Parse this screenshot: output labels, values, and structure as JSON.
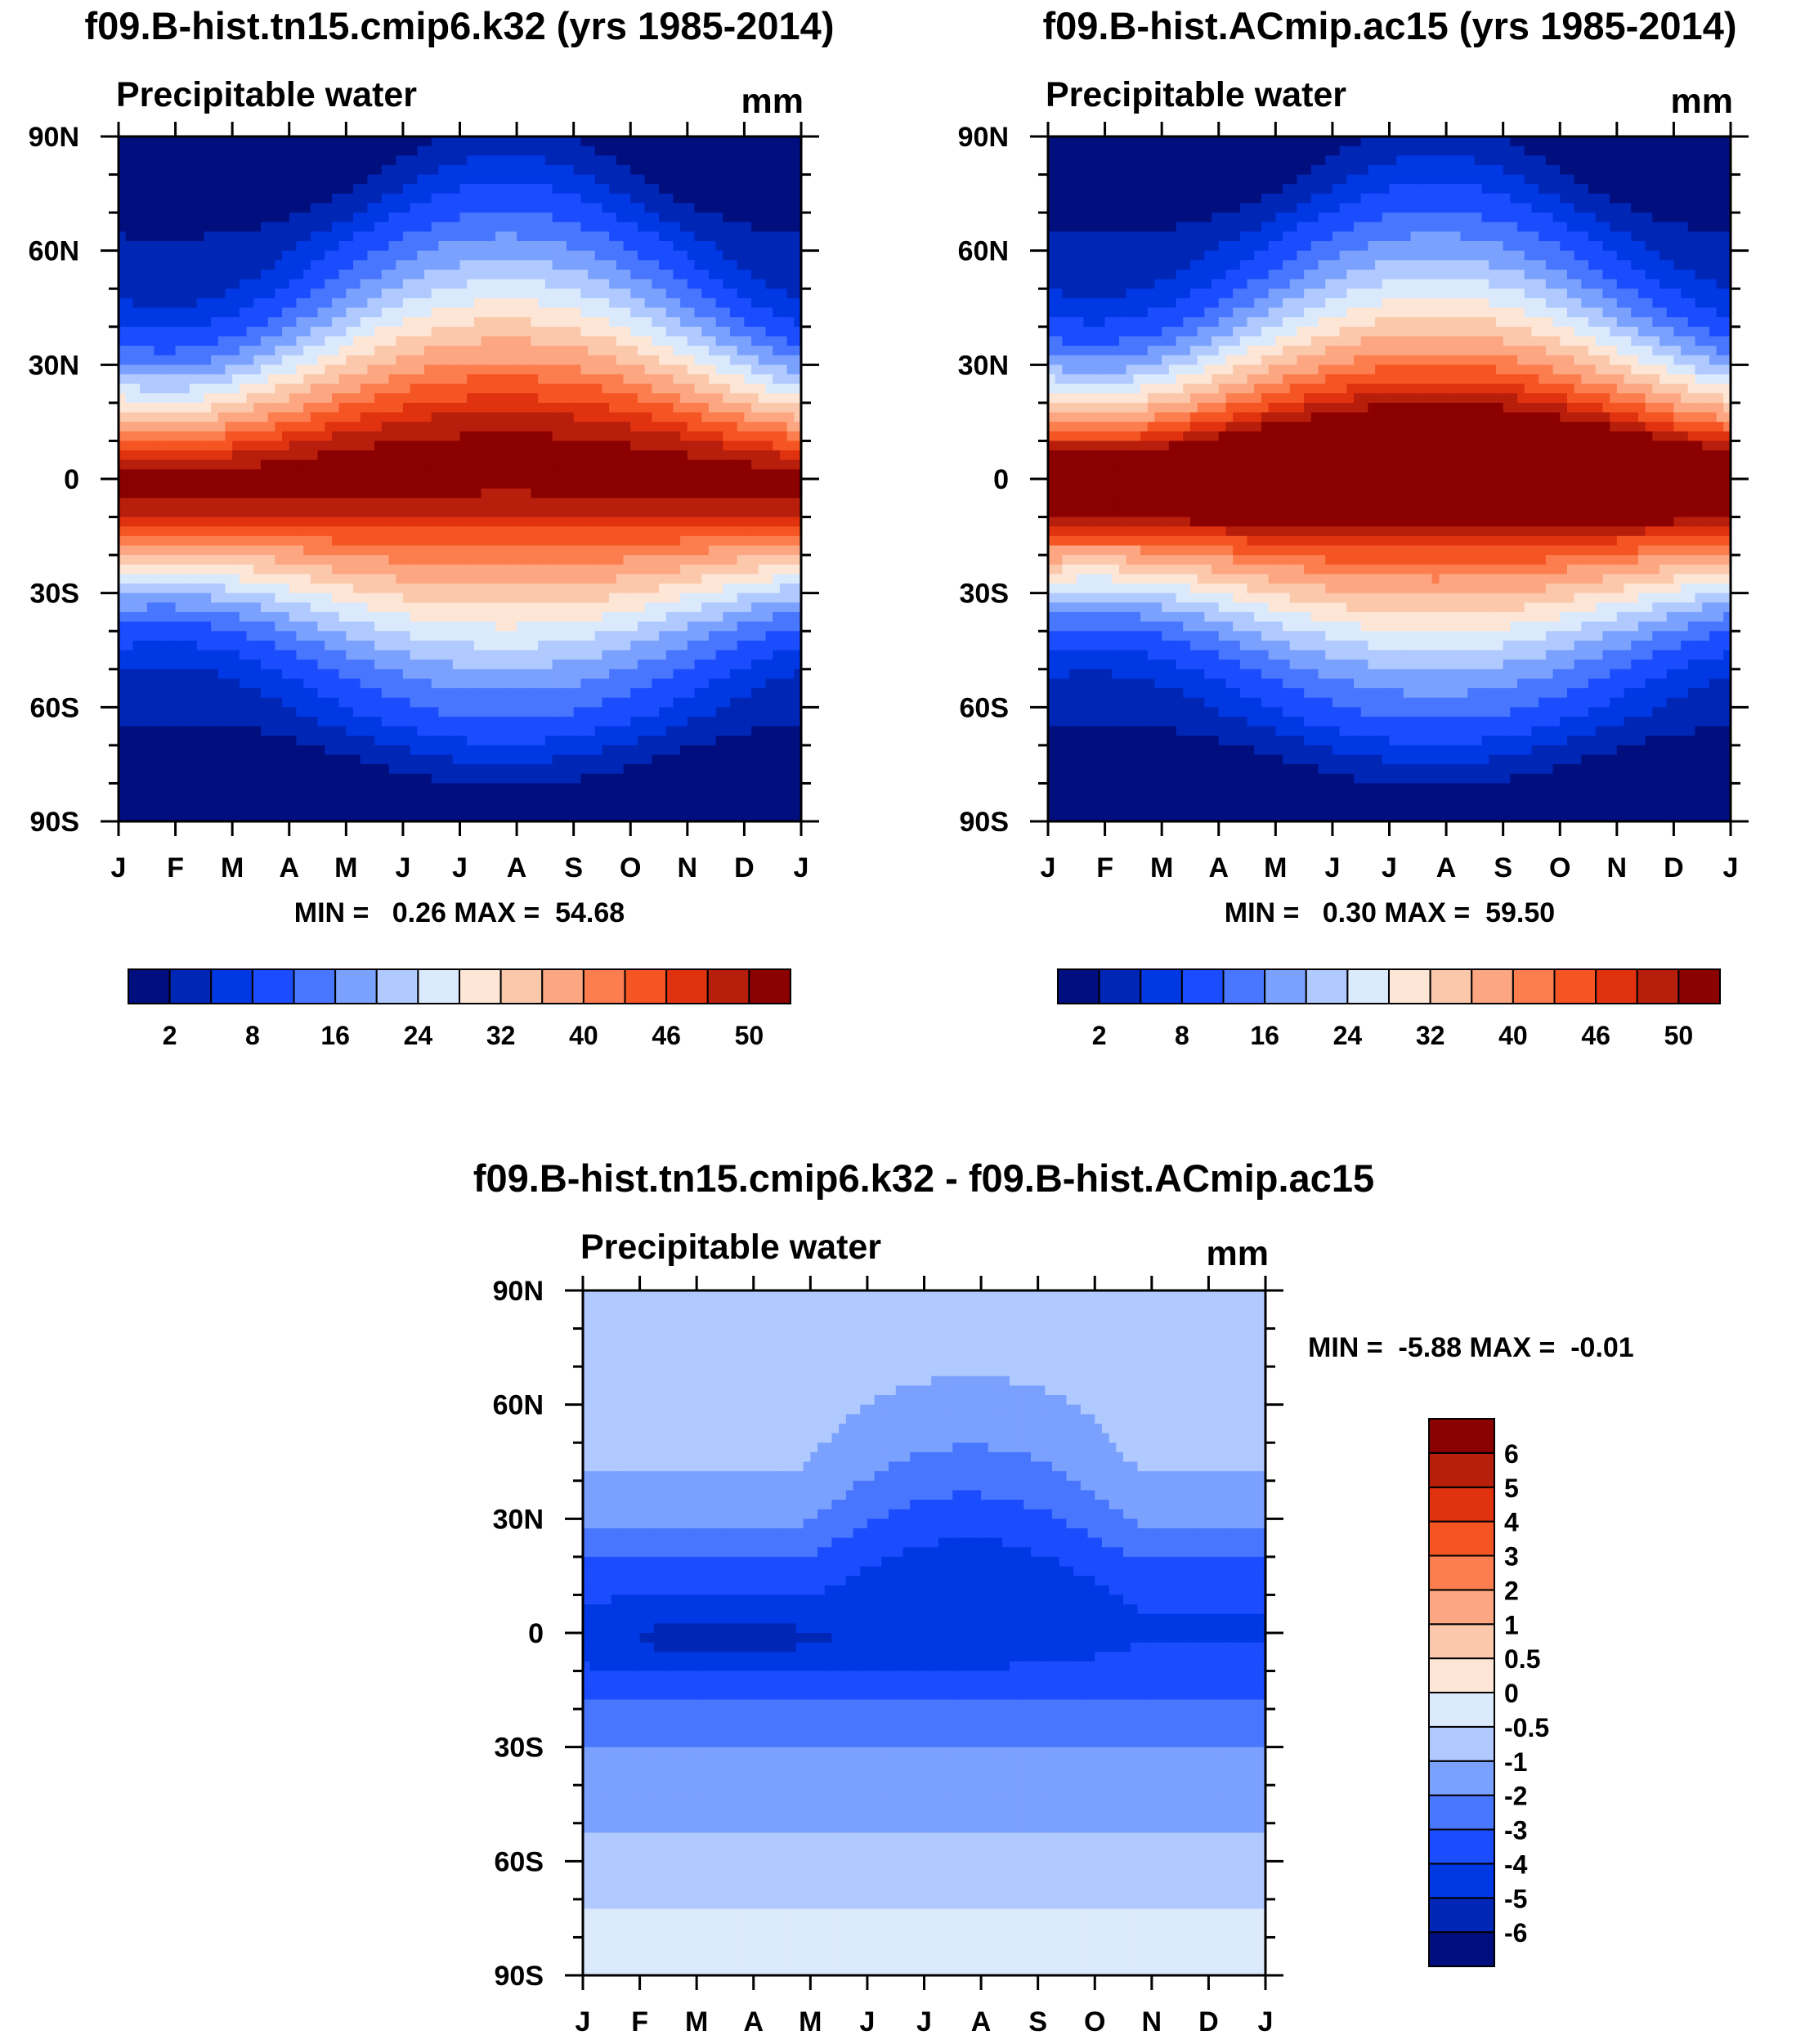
{
  "chart_data": [
    {
      "type": "heatmap",
      "title": "f09.B-hist.tn15.cmip6.k32 (yrs 1985-2014)",
      "subtitle": "Precipitable water",
      "units": "mm",
      "x_tick_labels": [
        "J",
        "F",
        "M",
        "A",
        "M",
        "J",
        "J",
        "A",
        "S",
        "O",
        "N",
        "D",
        "J"
      ],
      "y_tick_labels": [
        "90N",
        "60N",
        "30N",
        "0",
        "30S",
        "60S",
        "90S"
      ],
      "y_range": [
        -90,
        90
      ],
      "stats_text": "MIN =   0.26 MAX =  54.68",
      "min": 0.26,
      "max": 54.68,
      "colorbar": {
        "orientation": "horizontal",
        "colors": [
          "#000e7e",
          "#0026b6",
          "#0038e4",
          "#1b4dff",
          "#4876ff",
          "#7ba1ff",
          "#b0c9ff",
          "#dbe9fc",
          "#fde6d6",
          "#fcc8ac",
          "#fca782",
          "#fc7d4e",
          "#f55522",
          "#e0320f",
          "#b71e0b",
          "#8b0000"
        ],
        "levels": [
          0,
          2,
          5,
          8,
          12,
          16,
          20,
          24,
          28,
          32,
          36,
          40,
          43,
          46,
          48,
          50,
          60
        ],
        "tick_labels": [
          "2",
          "8",
          "16",
          "24",
          "32",
          "40",
          "46",
          "50"
        ]
      }
    },
    {
      "type": "heatmap",
      "title": "f09.B-hist.ACmip.ac15 (yrs 1985-2014)",
      "subtitle": "Precipitable water",
      "units": "mm",
      "x_tick_labels": [
        "J",
        "F",
        "M",
        "A",
        "M",
        "J",
        "J",
        "A",
        "S",
        "O",
        "N",
        "D",
        "J"
      ],
      "y_tick_labels": [
        "90N",
        "60N",
        "30N",
        "0",
        "30S",
        "60S",
        "90S"
      ],
      "y_range": [
        -90,
        90
      ],
      "stats_text": "MIN =   0.30 MAX =  59.50",
      "min": 0.3,
      "max": 59.5,
      "colorbar": {
        "orientation": "horizontal",
        "colors": [
          "#000e7e",
          "#0026b6",
          "#0038e4",
          "#1b4dff",
          "#4876ff",
          "#7ba1ff",
          "#b0c9ff",
          "#dbe9fc",
          "#fde6d6",
          "#fcc8ac",
          "#fca782",
          "#fc7d4e",
          "#f55522",
          "#e0320f",
          "#b71e0b",
          "#8b0000"
        ],
        "levels": [
          0,
          2,
          5,
          8,
          12,
          16,
          20,
          24,
          28,
          32,
          36,
          40,
          43,
          46,
          48,
          50,
          60
        ],
        "tick_labels": [
          "2",
          "8",
          "16",
          "24",
          "32",
          "40",
          "46",
          "50"
        ]
      }
    },
    {
      "type": "heatmap",
      "title": "f09.B-hist.tn15.cmip6.k32 - f09.B-hist.ACmip.ac15",
      "subtitle": "Precipitable water",
      "units": "mm",
      "x_tick_labels": [
        "J",
        "F",
        "M",
        "A",
        "M",
        "J",
        "J",
        "A",
        "S",
        "O",
        "N",
        "D",
        "J"
      ],
      "y_tick_labels": [
        "90N",
        "60N",
        "30N",
        "0",
        "30S",
        "60S",
        "90S"
      ],
      "y_range": [
        -90,
        90
      ],
      "stats_text": "MIN =  -5.88 MAX =  -0.01",
      "min": -5.88,
      "max": -0.01,
      "colorbar": {
        "orientation": "vertical",
        "colors": [
          "#000e7e",
          "#0026b6",
          "#0038e4",
          "#1b4dff",
          "#4876ff",
          "#7ba1ff",
          "#b0c9ff",
          "#dbe9fc",
          "#fde6d6",
          "#fcc8ac",
          "#fca782",
          "#fc7d4e",
          "#f55522",
          "#e0320f",
          "#b71e0b",
          "#8b0000"
        ],
        "levels": [
          -8,
          -6,
          -5,
          -4,
          -3,
          -2,
          -1,
          -0.5,
          0,
          0.5,
          1,
          2,
          3,
          4,
          5,
          6,
          8
        ],
        "tick_labels": [
          "-6",
          "-5",
          "-4",
          "-3",
          "-2",
          "-1",
          "-0.5",
          "0",
          "0.5",
          "1",
          "2",
          "3",
          "4",
          "5",
          "6"
        ]
      }
    }
  ]
}
